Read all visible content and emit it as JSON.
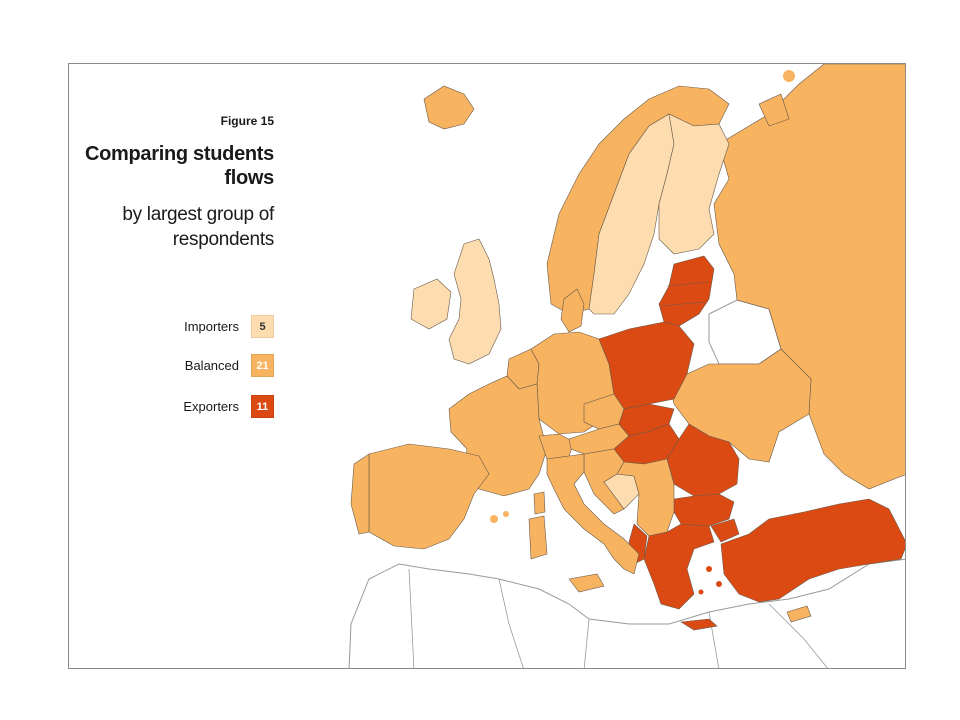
{
  "figure": {
    "label": "Figure 15",
    "title": "Comparing students flows",
    "subtitle": "by largest group of respondents"
  },
  "legend": [
    {
      "label": "Importers",
      "count": "5",
      "color": "#fddcb0",
      "text_color": "#333333"
    },
    {
      "label": "Balanced",
      "count": "21",
      "color": "#f7b35f",
      "text_color": "#ffffff"
    },
    {
      "label": "Exporters",
      "count": "11",
      "color": "#dc4a13",
      "text_color": "#ffffff"
    }
  ],
  "colors": {
    "land_outline": "#8a8a8a",
    "non_member_fill": "#ffffff",
    "sea": "#ffffff",
    "border": "#5a4a3a"
  },
  "map_data": {
    "categories": {
      "Importers": [
        "Sweden",
        "Finland",
        "United Kingdom",
        "Ireland",
        "Bosnia and Herzegovina"
      ],
      "Balanced": [
        "Iceland",
        "Norway",
        "Denmark",
        "Netherlands",
        "Belgium",
        "Luxembourg",
        "France",
        "Spain",
        "Portugal",
        "Germany",
        "Switzerland",
        "Austria",
        "Czech Republic",
        "Italy",
        "Slovenia",
        "Croatia",
        "Serbia",
        "Montenegro",
        "Macedonia",
        "Ukraine",
        "Russia"
      ],
      "Exporters": [
        "Estonia",
        "Latvia",
        "Lithuania",
        "Poland",
        "Slovakia",
        "Hungary",
        "Romania",
        "Bulgaria",
        "Greece",
        "Turkey",
        "Cyprus"
      ]
    }
  }
}
